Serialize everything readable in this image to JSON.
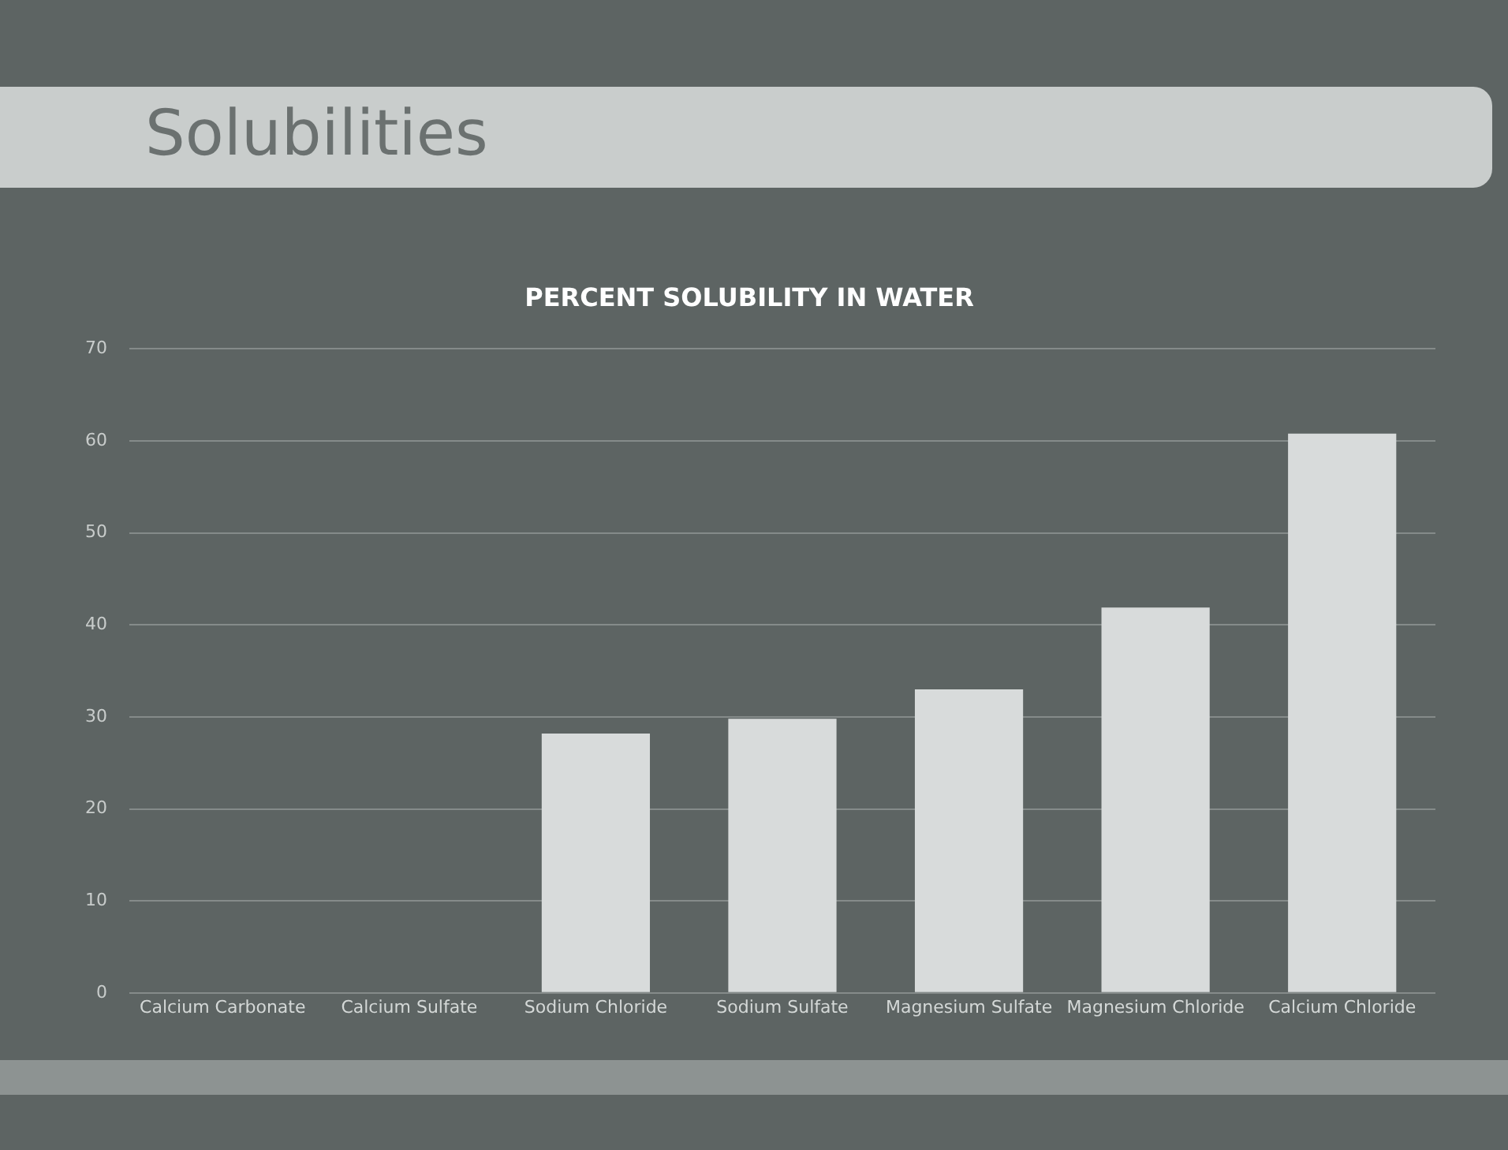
{
  "chart_data": {
    "type": "bar",
    "title": "Solubilities",
    "subtitle": "PERCENT SOLUBILITY IN WATER",
    "categories": [
      "Calcium Carbonate",
      "Calcium Sulfate",
      "Sodium Chloride",
      "Sodium Sulfate",
      "Magnesium Sulfate",
      "Magnesium Chloride",
      "Calcium Chloride"
    ],
    "values": [
      0,
      0,
      28.2,
      29.8,
      33,
      41.9,
      60.8
    ],
    "color": "#d8dbdb",
    "ylim": [
      0,
      70
    ],
    "yticks": [
      0,
      10,
      20,
      30,
      40,
      50,
      60,
      70
    ],
    "grid": "y",
    "legend": false
  }
}
